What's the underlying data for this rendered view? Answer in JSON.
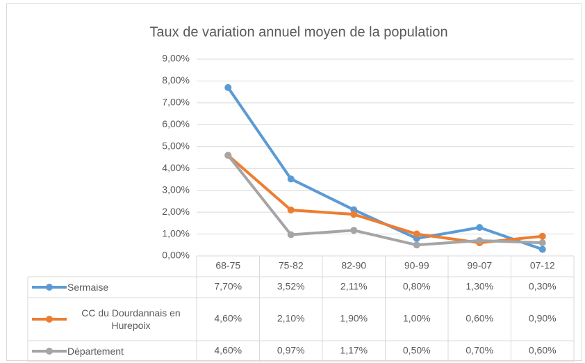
{
  "chart_data": {
    "type": "line",
    "title": "Taux de variation annuel moyen de la population",
    "categories": [
      "68-75",
      "75-82",
      "82-90",
      "90-99",
      "99-07",
      "07-12"
    ],
    "series": [
      {
        "name": "Sermaise",
        "color": "#5b9bd5",
        "values": [
          7.7,
          3.52,
          2.11,
          0.8,
          1.3,
          0.3
        ],
        "value_labels": [
          "7,70%",
          "3,52%",
          "2,11%",
          "0,80%",
          "1,30%",
          "0,30%"
        ]
      },
      {
        "name": "CC du Dourdannais en Hurepoix",
        "color": "#ed7d31",
        "values": [
          4.6,
          2.1,
          1.9,
          1.0,
          0.6,
          0.9
        ],
        "value_labels": [
          "4,60%",
          "2,10%",
          "1,90%",
          "1,00%",
          "0,60%",
          "0,90%"
        ]
      },
      {
        "name": "Département",
        "color": "#a5a5a5",
        "values": [
          4.6,
          0.97,
          1.17,
          0.5,
          0.7,
          0.6
        ],
        "value_labels": [
          "4,60%",
          "0,97%",
          "1,17%",
          "0,50%",
          "0,70%",
          "0,60%"
        ]
      }
    ],
    "ylim": [
      0,
      9
    ],
    "yticks": [
      {
        "value": 0,
        "label": "0,00%"
      },
      {
        "value": 1,
        "label": "1,00%"
      },
      {
        "value": 2,
        "label": "2,00%"
      },
      {
        "value": 3,
        "label": "3,00%"
      },
      {
        "value": 4,
        "label": "4,00%"
      },
      {
        "value": 5,
        "label": "5,00%"
      },
      {
        "value": 6,
        "label": "6,00%"
      },
      {
        "value": 7,
        "label": "7,00%"
      },
      {
        "value": 8,
        "label": "8,00%"
      },
      {
        "value": 9,
        "label": "9,00%"
      }
    ],
    "grid": true
  }
}
